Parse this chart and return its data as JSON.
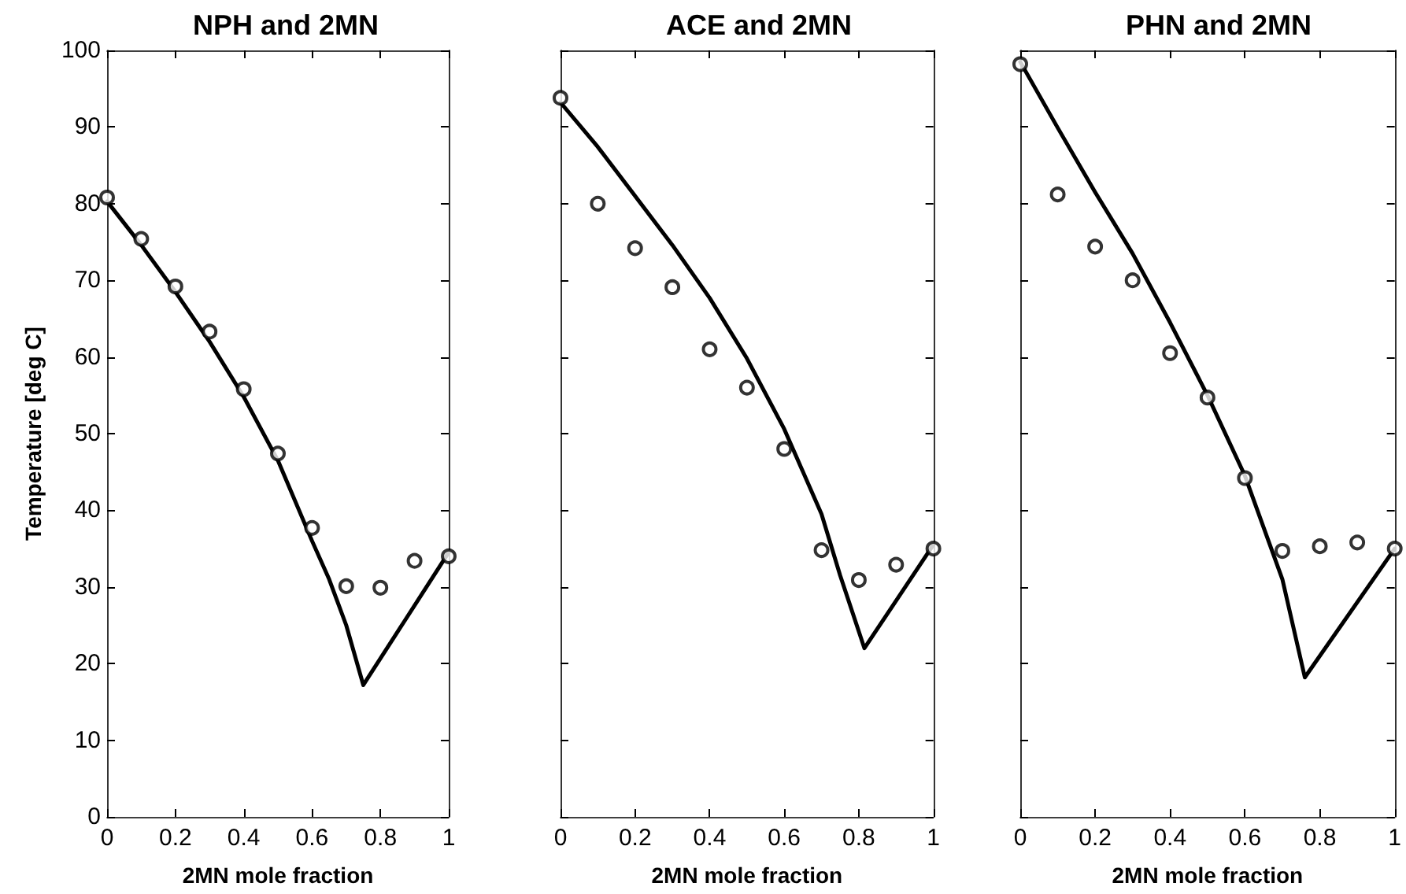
{
  "chart_data": [
    {
      "type": "scatter",
      "title": "NPH and 2MN",
      "xlabel": "2MN mole fraction",
      "ylabel": "Temperature [deg C]",
      "xlim": [
        0,
        1
      ],
      "xticks": [
        0,
        0.2,
        0.4,
        0.6,
        0.8,
        1
      ],
      "ylim": [
        0,
        100
      ],
      "yticks": [
        0,
        10,
        20,
        30,
        40,
        50,
        60,
        70,
        80,
        90,
        100
      ],
      "grid": false,
      "series": [
        {
          "color": "#000000",
          "marker": "circle",
          "x": [
            0,
            0.1,
            0.2,
            0.3,
            0.4,
            0.5,
            0.6,
            0.7,
            0.8,
            0.9,
            1
          ],
          "values": [
            80.8,
            75.4,
            69.2,
            63.3,
            55.8,
            47.4,
            37.7,
            30.1,
            29.9,
            33.4,
            34
          ]
        },
        {
          "type": "line",
          "color": "#000000",
          "marker": "none",
          "line_style": "solid",
          "x": [
            0,
            0.1,
            0.2,
            0.3,
            0.4,
            0.5,
            0.6,
            0.65,
            0.7,
            0.75,
            1
          ],
          "values": [
            80.3,
            74.6,
            68.5,
            62,
            54.8,
            46.5,
            36,
            31,
            25,
            17.2,
            34.5
          ]
        }
      ]
    },
    {
      "type": "scatter",
      "title": "ACE and 2MN",
      "xlabel": "2MN mole fraction",
      "xlim": [
        0,
        1
      ],
      "xticks": [
        0,
        0.2,
        0.4,
        0.6,
        0.8,
        1
      ],
      "ylim": [
        0,
        100
      ],
      "yticks": [
        0,
        10,
        20,
        30,
        40,
        50,
        60,
        70,
        80,
        90,
        100
      ],
      "grid": false,
      "tick_labels": "x",
      "series": [
        {
          "color": "#000000",
          "marker": "circle",
          "x": [
            0,
            0.1,
            0.2,
            0.3,
            0.4,
            0.5,
            0.6,
            0.7,
            0.8,
            0.9,
            1
          ],
          "values": [
            93.8,
            80,
            74.2,
            69.1,
            61,
            56,
            48,
            34.8,
            30.9,
            32.9,
            35
          ]
        },
        {
          "type": "line",
          "color": "#000000",
          "marker": "none",
          "line_style": "solid",
          "x": [
            0,
            0.1,
            0.2,
            0.3,
            0.4,
            0.5,
            0.6,
            0.7,
            0.75,
            0.815,
            1
          ],
          "values": [
            93.2,
            87.4,
            81,
            74.6,
            67.7,
            59.8,
            50.6,
            39.5,
            31.5,
            22,
            35.5
          ]
        }
      ]
    },
    {
      "type": "scatter",
      "title": "PHN and 2MN",
      "xlabel": "2MN mole fraction",
      "xlim": [
        0,
        1
      ],
      "xticks": [
        0,
        0.2,
        0.4,
        0.6,
        0.8,
        1
      ],
      "ylim": [
        0,
        100
      ],
      "yticks": [
        0,
        10,
        20,
        30,
        40,
        50,
        60,
        70,
        80,
        90,
        100
      ],
      "grid": false,
      "tick_labels": "x",
      "series": [
        {
          "color": "#000000",
          "marker": "circle",
          "x": [
            0,
            0.1,
            0.2,
            0.3,
            0.4,
            0.5,
            0.6,
            0.7,
            0.8,
            0.9,
            1
          ],
          "values": [
            98.2,
            81.2,
            74.4,
            70,
            60.5,
            54.7,
            44.2,
            34.7,
            35.3,
            35.8,
            35
          ]
        },
        {
          "type": "line",
          "color": "#000000",
          "marker": "none",
          "line_style": "solid",
          "x": [
            0,
            0.1,
            0.2,
            0.3,
            0.4,
            0.5,
            0.6,
            0.7,
            0.76,
            1
          ],
          "values": [
            98.5,
            89.9,
            81.5,
            73.5,
            64.5,
            55,
            44.5,
            31,
            18.2,
            35
          ]
        }
      ]
    }
  ]
}
